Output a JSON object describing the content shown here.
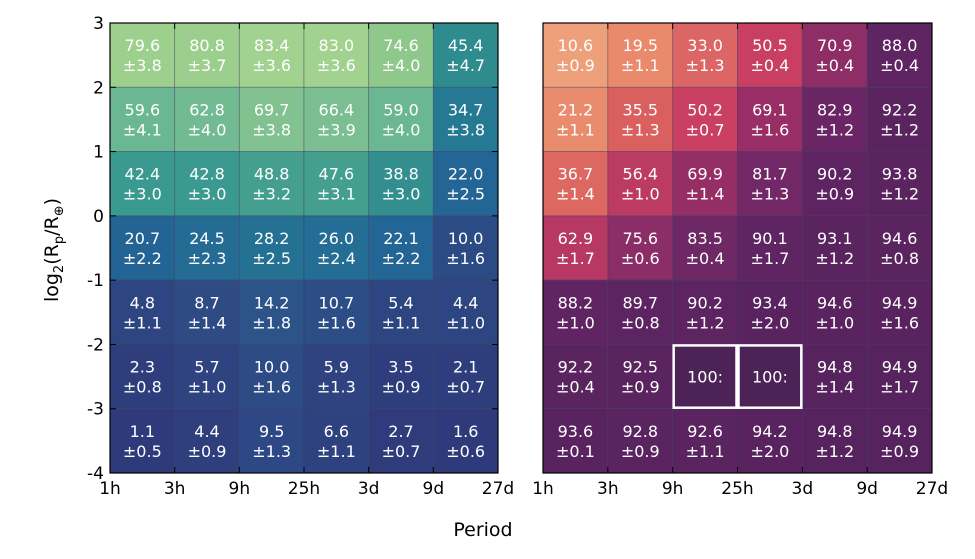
{
  "chart_data": [
    {
      "type": "heatmap",
      "name": "left-panel",
      "colormap": "viridis-like",
      "xlabel": "Period",
      "ylabel": "log2(Rp/R⊕)",
      "xticks": [
        "1h",
        "3h",
        "9h",
        "25h",
        "3d",
        "9d",
        "27d"
      ],
      "yticks": [
        "3",
        "2",
        "1",
        "0",
        "-1",
        "-2",
        "-3",
        "-4"
      ],
      "ylim": [
        -4,
        3
      ],
      "values": [
        [
          "79.6",
          "80.8",
          "83.4",
          "83.0",
          "74.6",
          "45.4"
        ],
        [
          "59.6",
          "62.8",
          "69.7",
          "66.4",
          "59.0",
          "34.7"
        ],
        [
          "42.4",
          "42.8",
          "48.8",
          "47.6",
          "38.8",
          "22.0"
        ],
        [
          "20.7",
          "24.5",
          "28.2",
          "26.0",
          "22.1",
          "10.0"
        ],
        [
          "4.8",
          "8.7",
          "14.2",
          "10.7",
          "5.4",
          "4.4"
        ],
        [
          "2.3",
          "5.7",
          "10.0",
          "5.9",
          "3.5",
          "2.1"
        ],
        [
          "1.1",
          "4.4",
          "9.5",
          "6.6",
          "2.7",
          "1.6"
        ]
      ],
      "errors": [
        [
          "±3.8",
          "±3.7",
          "±3.6",
          "±3.6",
          "±4.0",
          "±4.7"
        ],
        [
          "±4.1",
          "±4.0",
          "±3.8",
          "±3.9",
          "±4.0",
          "±3.8"
        ],
        [
          "±3.0",
          "±3.0",
          "±3.2",
          "±3.1",
          "±3.0",
          "±2.5"
        ],
        [
          "±2.2",
          "±2.3",
          "±2.5",
          "±2.4",
          "±2.2",
          "±1.6"
        ],
        [
          "±1.1",
          "±1.4",
          "±1.8",
          "±1.6",
          "±1.1",
          "±1.0"
        ],
        [
          "±0.8",
          "±1.0",
          "±1.6",
          "±1.3",
          "±0.9",
          "±0.7"
        ],
        [
          "±0.5",
          "±0.9",
          "±1.3",
          "±1.1",
          "±0.7",
          "±0.6"
        ]
      ],
      "highlight": [],
      "colors": [
        [
          "#9dcf8d",
          "#9ccf8d",
          "#a2d28f",
          "#a2d28f",
          "#8ec88b",
          "#2f8c8e"
        ],
        [
          "#6bb793",
          "#72ba92",
          "#82c190",
          "#7bbe91",
          "#6bb793",
          "#257993"
        ],
        [
          "#3a9a8f",
          "#3a9a8f",
          "#459f8f",
          "#449f8f",
          "#338f8f",
          "#236594"
        ],
        [
          "#236494",
          "#246c94",
          "#247193",
          "#246d94",
          "#236594",
          "#2a4b84"
        ],
        [
          "#2d4581",
          "#2e4b84",
          "#2c5489",
          "#2d4d86",
          "#2d4581",
          "#2d4581"
        ],
        [
          "#2e3e7d",
          "#2e4380",
          "#2d4b84",
          "#2e4380",
          "#2e3e7d",
          "#2e3e7d"
        ],
        [
          "#2f3a7a",
          "#2f3e7d",
          "#2d4884",
          "#2e427f",
          "#2f3b7b",
          "#2f3a7a"
        ]
      ]
    },
    {
      "type": "heatmap",
      "name": "right-panel",
      "colormap": "magma-like",
      "xlabel": "Period",
      "xticks": [
        "1h",
        "3h",
        "9h",
        "25h",
        "3d",
        "9d",
        "27d"
      ],
      "values": [
        [
          "10.6",
          "19.5",
          "33.0",
          "50.5",
          "70.9",
          "88.0"
        ],
        [
          "21.2",
          "35.5",
          "50.2",
          "69.1",
          "82.9",
          "92.2"
        ],
        [
          "36.7",
          "56.4",
          "69.9",
          "81.7",
          "90.2",
          "93.8"
        ],
        [
          "62.9",
          "75.6",
          "83.5",
          "90.1",
          "93.1",
          "94.6"
        ],
        [
          "88.2",
          "89.7",
          "90.2",
          "93.4",
          "94.6",
          "94.9"
        ],
        [
          "92.2",
          "92.5",
          "100:",
          "100:",
          "94.8",
          "94.9"
        ],
        [
          "93.6",
          "92.8",
          "92.6",
          "94.2",
          "94.8",
          "94.9"
        ]
      ],
      "errors": [
        [
          "±0.9",
          "±1.1",
          "±1.3",
          "±0.4",
          "±0.4",
          "±0.4"
        ],
        [
          "±1.1",
          "±1.3",
          "±0.7",
          "±1.6",
          "±1.2",
          "±1.2"
        ],
        [
          "±1.4",
          "±1.0",
          "±1.4",
          "±1.3",
          "±0.9",
          "±1.2"
        ],
        [
          "±1.7",
          "±0.6",
          "±0.4",
          "±1.7",
          "±1.2",
          "±0.8"
        ],
        [
          "±1.0",
          "±0.8",
          "±1.2",
          "±2.0",
          "±1.0",
          "±1.6"
        ],
        [
          "±0.4",
          "±0.9",
          "",
          "",
          "±1.4",
          "±1.7"
        ],
        [
          "±0.1",
          "±0.9",
          "±1.1",
          "±2.0",
          "±1.2",
          "±0.9"
        ]
      ],
      "highlight": [
        [
          5,
          2
        ],
        [
          5,
          3
        ]
      ],
      "colors": [
        [
          "#eea07b",
          "#e98a6c",
          "#dc6565",
          "#c93f63",
          "#8f2d66",
          "#5f2462"
        ],
        [
          "#e98c6d",
          "#d9605f",
          "#c94063",
          "#982e65",
          "#6a2664",
          "#5a245f"
        ],
        [
          "#dd6862",
          "#bc3b63",
          "#952e64",
          "#722866",
          "#5d2461",
          "#5a245f"
        ],
        [
          "#b73863",
          "#8b2d66",
          "#6e2865",
          "#5f2462",
          "#5a245f",
          "#5a245f"
        ],
        [
          "#5f2461",
          "#5c2460",
          "#5c2460",
          "#58235e",
          "#58235e",
          "#58235e"
        ],
        [
          "#5a245f",
          "#5a245f",
          "#4d2257",
          "#4d2257",
          "#57235e",
          "#57235e"
        ],
        [
          "#58235e",
          "#59245f",
          "#59245f",
          "#58235e",
          "#57235e",
          "#57235e"
        ]
      ]
    }
  ]
}
